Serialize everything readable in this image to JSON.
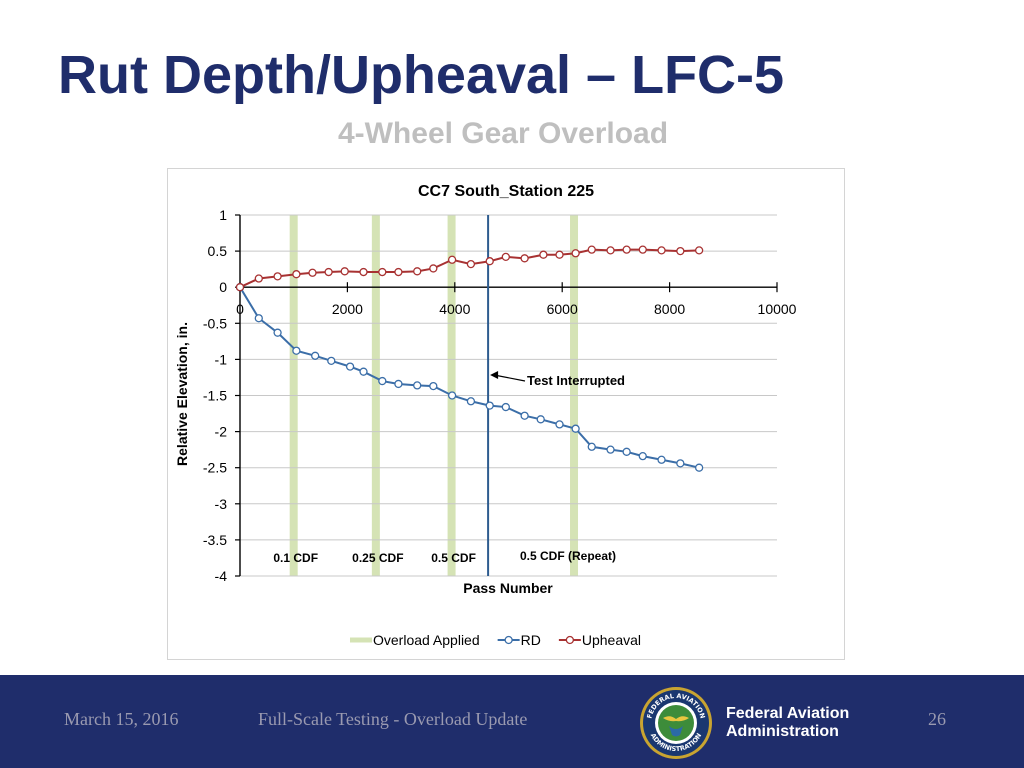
{
  "slide": {
    "title": "Rut Depth/Upheaval – LFC-5",
    "subtitle": "4-Wheel Gear Overload"
  },
  "colors": {
    "title": "#1f2d6b",
    "subtitle": "#bfbfbf",
    "footer_bg": "#1f2d6b",
    "footer_text": "#9a9ab0",
    "rd_line": "#3b6ea8",
    "upheaval_line": "#a83232",
    "overload_band": "#d5e3b5",
    "interrupt_line": "#2e5c8f"
  },
  "footer": {
    "date": "March 15, 2016",
    "center_text": "Full-Scale Testing - Overload Update",
    "page_number": "26",
    "agency_line1": "Federal Aviation",
    "agency_line2": "Administration",
    "seal_top_text": "FEDERAL AVIATION",
    "seal_bottom_text": "ADMINISTRATION"
  },
  "chart_data": {
    "type": "line",
    "title": "CC7 South_Station 225",
    "xlabel": "Pass Number",
    "ylabel": "Relative Elevation, in.",
    "xlim": [
      0,
      10000
    ],
    "ylim": [
      -4,
      1
    ],
    "x_ticks": [
      0,
      2000,
      4000,
      6000,
      8000,
      10000
    ],
    "y_ticks": [
      1,
      0.5,
      0,
      -0.5,
      -1,
      -1.5,
      -2,
      -2.5,
      -3,
      -3.5,
      -4
    ],
    "grid": "horizontal",
    "legend_position": "bottom",
    "overload_bands": [
      1000,
      2530,
      3940,
      6220
    ],
    "overload_labels": [
      {
        "text": "0.1 CDF",
        "x": 1000
      },
      {
        "text": "0.25 CDF",
        "x": 2530
      },
      {
        "text": "0.5 CDF",
        "x": 3940
      },
      {
        "text": "0.5 CDF (Repeat)",
        "x": 6220
      }
    ],
    "test_interrupted": {
      "x": 4620,
      "label": "Test Interrupted"
    },
    "series": [
      {
        "name": "Overload Applied",
        "kind": "band"
      },
      {
        "name": "RD",
        "x": [
          0,
          350,
          700,
          1050,
          1400,
          1700,
          2050,
          2300,
          2650,
          2950,
          3300,
          3600,
          3950,
          4300,
          4650,
          4950,
          5300,
          5600,
          5950,
          6250,
          6550,
          6900,
          7200,
          7500,
          7850,
          8200,
          8550
        ],
        "y": [
          0,
          -0.43,
          -0.63,
          -0.88,
          -0.95,
          -1.02,
          -1.1,
          -1.17,
          -1.3,
          -1.34,
          -1.36,
          -1.37,
          -1.5,
          -1.58,
          -1.64,
          -1.66,
          -1.78,
          -1.83,
          -1.9,
          -1.96,
          -2.21,
          -2.25,
          -2.28,
          -2.34,
          -2.39,
          -2.44,
          -2.5
        ]
      },
      {
        "name": "Upheaval",
        "x": [
          0,
          350,
          700,
          1050,
          1350,
          1650,
          1950,
          2300,
          2650,
          2950,
          3300,
          3600,
          3950,
          4300,
          4650,
          4950,
          5300,
          5650,
          5950,
          6250,
          6550,
          6900,
          7200,
          7500,
          7850,
          8200,
          8550
        ],
        "y": [
          0,
          0.12,
          0.15,
          0.18,
          0.2,
          0.21,
          0.22,
          0.21,
          0.21,
          0.21,
          0.22,
          0.26,
          0.38,
          0.32,
          0.36,
          0.42,
          0.4,
          0.45,
          0.45,
          0.47,
          0.52,
          0.51,
          0.52,
          0.52,
          0.51,
          0.5,
          0.51
        ]
      }
    ]
  }
}
